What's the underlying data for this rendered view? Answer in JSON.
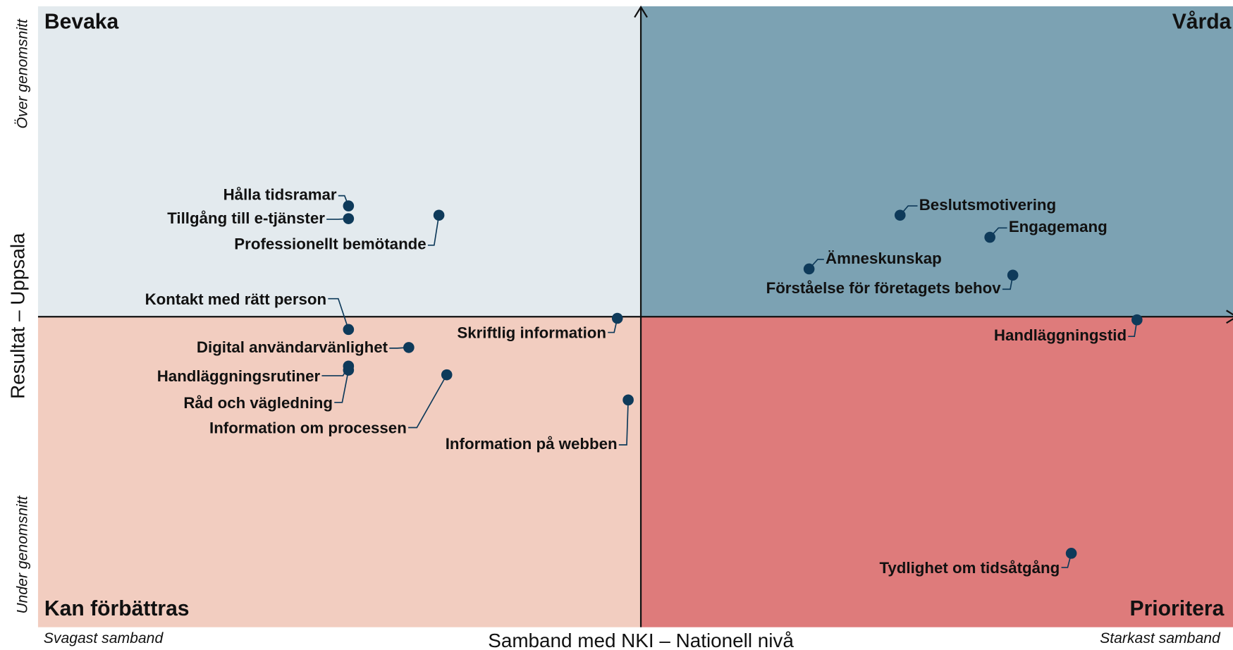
{
  "chart_data": {
    "type": "scatter",
    "quadrant_labels": {
      "top_left": "Bevaka",
      "top_right": "Vårda",
      "bottom_left": "Kan förbättras",
      "bottom_right": "Prioritera"
    },
    "y_label": "Resultat – Uppsala",
    "y_high_label": "Över genomsnitt",
    "y_low_label": "Under genomsnitt",
    "x_label": "Samband med NKI – Nationell nivå",
    "x_low_label": "Svagast samband",
    "x_high_label": "Starkast samband",
    "quadrant_colors": {
      "top_left": "#e3eaee",
      "top_right": "#7ca2b3",
      "bottom_left": "#f2cdc0",
      "bottom_right": "#de7b7b"
    },
    "color": "#0e3a5a",
    "point_labels": [
      "Hålla tidsramar",
      "Tillgång till e-tjänster",
      "Professionellt bemötande",
      "Kontakt med rätt person",
      "Digital användarvänlighet",
      "Handläggningsrutiner",
      "Råd och vägledning",
      "Information om processen",
      "Skriftlig information",
      "Information på webben",
      "Beslutsmotivering",
      "Engagemang",
      "Ämneskunskap",
      "Förståelse för företagets behov",
      "Handläggningstid",
      "Tydlighet om tidsåtgång"
    ],
    "x": [
      -48.5,
      -48.5,
      -33.5,
      -48.5,
      -38.5,
      -48.5,
      -48.5,
      -32.2,
      -3.9,
      -2.1,
      43.0,
      57.9,
      27.9,
      61.7,
      82.3,
      71.4
    ],
    "values": [
      35.7,
      31.6,
      32.7,
      -4.1,
      -9.9,
      -15.9,
      -17.2,
      -18.7,
      -0.5,
      -26.8,
      32.7,
      25.6,
      15.4,
      13.4,
      -1.0,
      -76.2
    ],
    "xlim": [
      -100,
      100
    ],
    "ylim": [
      -100,
      100
    ]
  }
}
